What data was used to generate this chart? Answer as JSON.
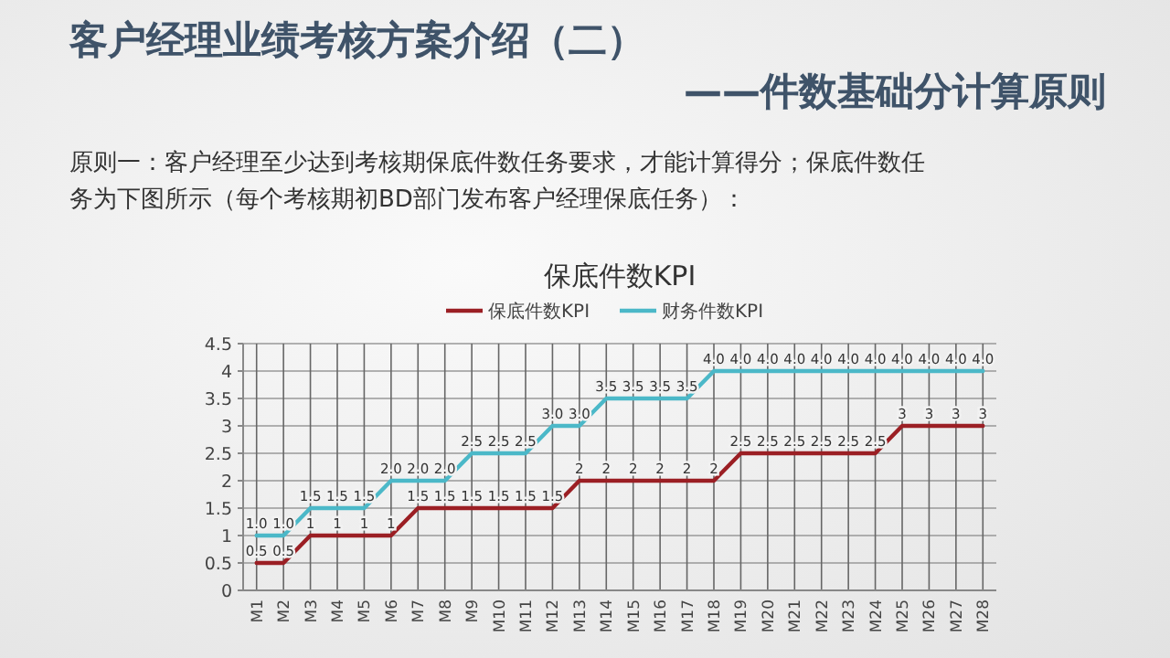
{
  "chart_data": {
    "type": "line",
    "title": "保底件数KPI",
    "annotations": [
      "客户经理业绩考核方案介绍（二）",
      "——件数基础分计算原则",
      "原则一：客户经理至少达到考核期保底件数任务要求，才能计算得分；保底件数任务为下图所示（每个考核期初BD部门发布客户经理保底任务）："
    ],
    "categories": [
      "M1",
      "M2",
      "M3",
      "M4",
      "M5",
      "M6",
      "M7",
      "M8",
      "M9",
      "M10",
      "M11",
      "M12",
      "M13",
      "M14",
      "M15",
      "M16",
      "M17",
      "M18",
      "M19",
      "M20",
      "M21",
      "M22",
      "M23",
      "M24",
      "M25",
      "M26",
      "M27",
      "M28"
    ],
    "series": [
      {
        "name": "保底件数KPI",
        "color": "#9b1f24",
        "values": [
          0.5,
          0.5,
          1,
          1,
          1,
          1,
          1.5,
          1.5,
          1.5,
          1.5,
          1.5,
          1.5,
          2,
          2,
          2,
          2,
          2,
          2,
          2.5,
          2.5,
          2.5,
          2.5,
          2.5,
          2.5,
          3,
          3,
          3,
          3
        ],
        "value_labels": [
          "0.5",
          "0.5",
          "1",
          "1",
          "1",
          "1",
          "1.5",
          "1.5",
          "1.5",
          "1.5",
          "1.5",
          "1.5",
          "2",
          "2",
          "2",
          "2",
          "2",
          "2",
          "2.5",
          "2.5",
          "2.5",
          "2.5",
          "2.5",
          "2.5",
          "3",
          "3",
          "3",
          "3"
        ]
      },
      {
        "name": "财务件数KPI",
        "color": "#4bb8c8",
        "values": [
          1,
          1,
          1.5,
          1.5,
          1.5,
          2,
          2,
          2,
          2.5,
          2.5,
          2.5,
          3,
          3,
          3.5,
          3.5,
          3.5,
          3.5,
          4,
          4,
          4,
          4,
          4,
          4,
          4,
          4,
          4,
          4,
          4
        ],
        "value_labels": [
          "1.0",
          "1.0",
          "1.5",
          "1.5",
          "1.5",
          "2.0",
          "2.0",
          "2.0",
          "2.5",
          "2.5",
          "2.5",
          "3.0",
          "3.0",
          "3.5",
          "3.5",
          "3.5",
          "3.5",
          "4.0",
          "4.0",
          "4.0",
          "4.0",
          "4.0",
          "4.0",
          "4.0",
          "4.0",
          "4.0",
          "4.0",
          "4.0"
        ]
      }
    ],
    "ylim": [
      0,
      4.5
    ],
    "yticks": [
      0,
      0.5,
      1,
      1.5,
      2,
      2.5,
      3,
      3.5,
      4,
      4.5
    ],
    "grid": true,
    "legend": "top"
  }
}
